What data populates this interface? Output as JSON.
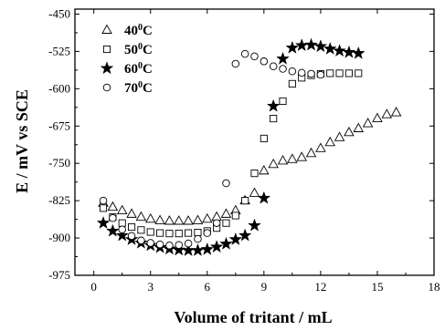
{
  "chart_data": {
    "type": "scatter",
    "xlabel": "Volume of tritant / mL",
    "ylabel": "E / mV vs SCE",
    "xlim": [
      -1,
      18
    ],
    "ylim": [
      -975,
      -440
    ],
    "xticks": [
      0,
      3,
      6,
      9,
      12,
      15,
      18
    ],
    "yticks": [
      -450,
      -525,
      -600,
      -675,
      -750,
      -825,
      -900,
      -975
    ],
    "legend_position": "top-left",
    "series": [
      {
        "name": "40",
        "legend_label": "40",
        "legend_suffix": "C",
        "marker": "triangle",
        "points": [
          [
            0.5,
            -830
          ],
          [
            1,
            -838
          ],
          [
            1.5,
            -845
          ],
          [
            2,
            -852
          ],
          [
            2.5,
            -858
          ],
          [
            3,
            -862
          ],
          [
            3.5,
            -865
          ],
          [
            4,
            -866
          ],
          [
            4.5,
            -866
          ],
          [
            5,
            -866
          ],
          [
            5.5,
            -865
          ],
          [
            6,
            -862
          ],
          [
            6.5,
            -858
          ],
          [
            7,
            -852
          ],
          [
            7.5,
            -845
          ],
          [
            8,
            -825
          ],
          [
            8.5,
            -810
          ],
          [
            9,
            -765
          ],
          [
            9.5,
            -752
          ],
          [
            10,
            -745
          ],
          [
            10.5,
            -742
          ],
          [
            11,
            -738
          ],
          [
            11.5,
            -730
          ],
          [
            12,
            -720
          ],
          [
            12.5,
            -708
          ],
          [
            13,
            -698
          ],
          [
            13.5,
            -688
          ],
          [
            14,
            -680
          ],
          [
            14.5,
            -670
          ],
          [
            15,
            -660
          ],
          [
            15.5,
            -652
          ],
          [
            16,
            -648
          ]
        ]
      },
      {
        "name": "50",
        "legend_label": "50",
        "legend_suffix": "C",
        "marker": "square",
        "points": [
          [
            0.5,
            -840
          ],
          [
            1,
            -858
          ],
          [
            1.5,
            -870
          ],
          [
            2,
            -878
          ],
          [
            2.5,
            -884
          ],
          [
            3,
            -888
          ],
          [
            3.5,
            -890
          ],
          [
            4,
            -891
          ],
          [
            4.5,
            -891
          ],
          [
            5,
            -890
          ],
          [
            5.5,
            -889
          ],
          [
            6,
            -886
          ],
          [
            6.5,
            -880
          ],
          [
            7,
            -870
          ],
          [
            7.5,
            -855
          ],
          [
            8,
            -825
          ],
          [
            8.5,
            -770
          ],
          [
            9,
            -700
          ],
          [
            9.5,
            -660
          ],
          [
            10,
            -625
          ],
          [
            10.5,
            -590
          ],
          [
            11,
            -578
          ],
          [
            11.5,
            -573
          ],
          [
            12,
            -570
          ],
          [
            12.5,
            -569
          ],
          [
            13,
            -569
          ],
          [
            13.5,
            -569
          ],
          [
            14,
            -569
          ]
        ]
      },
      {
        "name": "60",
        "legend_label": "60",
        "legend_suffix": "C",
        "marker": "star",
        "points": [
          [
            0.5,
            -870
          ],
          [
            1,
            -886
          ],
          [
            1.5,
            -895
          ],
          [
            2,
            -903
          ],
          [
            2.5,
            -910
          ],
          [
            3,
            -915
          ],
          [
            3.5,
            -919
          ],
          [
            4,
            -922
          ],
          [
            4.5,
            -924
          ],
          [
            5,
            -925
          ],
          [
            5.5,
            -925
          ],
          [
            6,
            -923
          ],
          [
            6.5,
            -918
          ],
          [
            7,
            -912
          ],
          [
            7.5,
            -903
          ],
          [
            8,
            -895
          ],
          [
            8.5,
            -875
          ],
          [
            9,
            -820
          ],
          [
            9.5,
            -635
          ],
          [
            10,
            -540
          ],
          [
            10.5,
            -518
          ],
          [
            11,
            -513
          ],
          [
            11.5,
            -512
          ],
          [
            12,
            -515
          ],
          [
            12.5,
            -520
          ],
          [
            13,
            -524
          ],
          [
            13.5,
            -527
          ],
          [
            14,
            -529
          ]
        ]
      },
      {
        "name": "70",
        "legend_label": "70",
        "legend_suffix": "C",
        "marker": "circle",
        "points": [
          [
            0.5,
            -825
          ],
          [
            1,
            -860
          ],
          [
            1.5,
            -883
          ],
          [
            2,
            -896
          ],
          [
            2.5,
            -905
          ],
          [
            3,
            -910
          ],
          [
            3.5,
            -913
          ],
          [
            4,
            -915
          ],
          [
            4.5,
            -914
          ],
          [
            5,
            -911
          ],
          [
            5.5,
            -902
          ],
          [
            6,
            -890
          ],
          [
            6.5,
            -870
          ],
          [
            7,
            -790
          ],
          [
            7.5,
            -550
          ],
          [
            8,
            -530
          ],
          [
            8.5,
            -535
          ],
          [
            9,
            -545
          ],
          [
            9.5,
            -555
          ],
          [
            10,
            -560
          ],
          [
            10.5,
            -565
          ],
          [
            11,
            -568
          ],
          [
            11.5,
            -570
          ],
          [
            12,
            -572
          ]
        ]
      }
    ]
  }
}
